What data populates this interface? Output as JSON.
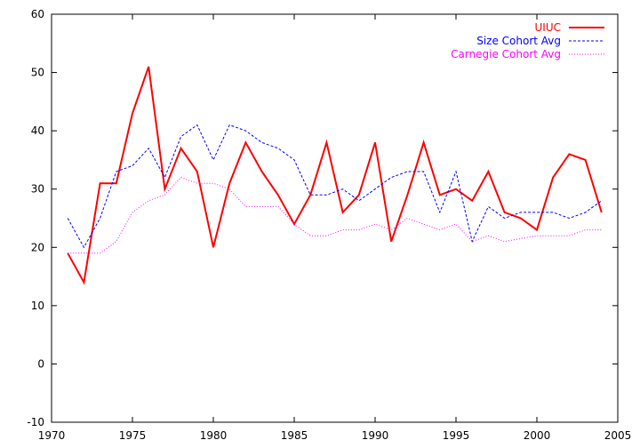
{
  "chart_data": {
    "type": "line",
    "title": "",
    "xlabel": "",
    "ylabel": "",
    "xlim": [
      1970,
      2005
    ],
    "ylim": [
      -10,
      60
    ],
    "xticks": [
      1970,
      1975,
      1980,
      1985,
      1990,
      1995,
      2000,
      2005
    ],
    "yticks": [
      -10,
      0,
      10,
      20,
      30,
      40,
      50,
      60
    ],
    "grid": false,
    "legend_position": "top-right",
    "series": [
      {
        "name": "UIUC",
        "color": "#ff0000",
        "style": "solid",
        "x": [
          1971,
          1972,
          1973,
          1974,
          1975,
          1976,
          1977,
          1978,
          1979,
          1980,
          1981,
          1982,
          1983,
          1984,
          1985,
          1986,
          1987,
          1988,
          1989,
          1990,
          1991,
          1992,
          1993,
          1994,
          1995,
          1996,
          1997,
          1998,
          1999,
          2000,
          2001,
          2002,
          2003,
          2004
        ],
        "values": [
          19,
          14,
          31,
          31,
          43,
          51,
          30,
          37,
          33,
          20,
          31,
          38,
          33,
          29,
          24,
          29,
          38,
          26,
          29,
          38,
          21,
          29,
          38,
          29,
          30,
          28,
          33,
          26,
          25,
          23,
          32,
          36,
          35,
          26
        ]
      },
      {
        "name": "Size Cohort Avg",
        "color": "#0000ff",
        "style": "dashed",
        "x": [
          1971,
          1972,
          1973,
          1974,
          1975,
          1976,
          1977,
          1978,
          1979,
          1980,
          1981,
          1982,
          1983,
          1984,
          1985,
          1986,
          1987,
          1988,
          1989,
          1990,
          1991,
          1992,
          1993,
          1994,
          1995,
          1996,
          1997,
          1998,
          1999,
          2000,
          2001,
          2002,
          2003,
          2004
        ],
        "values": [
          25,
          20,
          25,
          33,
          34,
          37,
          32,
          39,
          41,
          35,
          41,
          40,
          38,
          37,
          35,
          29,
          29,
          30,
          28,
          30,
          32,
          33,
          33,
          26,
          33,
          21,
          27,
          25,
          26,
          26,
          26,
          25,
          26,
          28
        ]
      },
      {
        "name": "Carnegie Cohort Avg",
        "color": "#ff00ff",
        "style": "dotted",
        "x": [
          1971,
          1972,
          1973,
          1974,
          1975,
          1976,
          1977,
          1978,
          1979,
          1980,
          1981,
          1982,
          1983,
          1984,
          1985,
          1986,
          1987,
          1988,
          1989,
          1990,
          1991,
          1992,
          1993,
          1994,
          1995,
          1996,
          1997,
          1998,
          1999,
          2000,
          2001,
          2002,
          2003,
          2004
        ],
        "values": [
          19,
          19,
          19,
          21,
          26,
          28,
          29,
          32,
          31,
          31,
          30,
          27,
          27,
          27,
          24,
          22,
          22,
          23,
          23,
          24,
          23,
          25,
          24,
          23,
          24,
          21,
          22,
          21,
          21.5,
          22,
          22,
          22,
          23,
          23
        ]
      }
    ]
  }
}
